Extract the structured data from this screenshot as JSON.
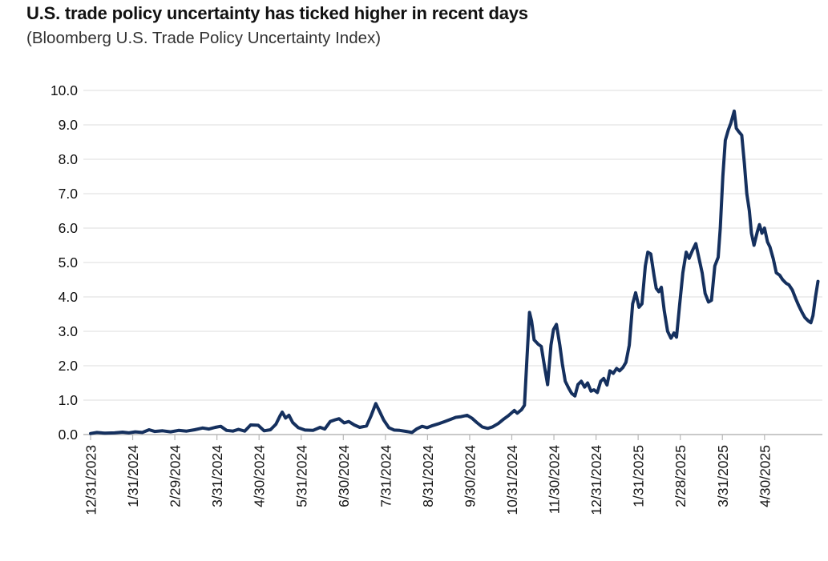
{
  "title": "U.S. trade policy uncertainty has ticked higher in recent days",
  "subtitle": "(Bloomberg U.S. Trade Policy Uncertainty Index)",
  "chart_data": {
    "type": "line",
    "title": "U.S. trade policy uncertainty has ticked higher in recent days",
    "subtitle": "(Bloomberg U.S. Trade Policy Uncertainty Index)",
    "series_name": "Bloomberg U.S. Trade Policy Uncertainty Index",
    "ylim": [
      0.0,
      10.0
    ],
    "grid": "horizontal",
    "legend": "none",
    "line_color": "#15305e",
    "grid_color": "#dcdcdc",
    "axis_color": "#b7b7b7",
    "y_tick_labels": [
      "0.0",
      "1.0",
      "2.0",
      "3.0",
      "4.0",
      "5.0",
      "6.0",
      "7.0",
      "8.0",
      "9.0",
      "10.0"
    ],
    "x_tick_labels": [
      "12/31/2023",
      "1/31/2024",
      "2/29/2024",
      "3/31/2024",
      "4/30/2024",
      "5/31/2024",
      "6/30/2024",
      "7/31/2024",
      "8/31/2024",
      "9/30/2024",
      "10/31/2024",
      "11/30/2024",
      "12/31/2024",
      "1/31/2025",
      "2/28/2025",
      "3/31/2025",
      "4/30/2025"
    ],
    "x_unit": "months_since_first_tick",
    "points": [
      [
        0,
        0.03
      ],
      [
        0.15,
        0.06
      ],
      [
        0.34,
        0.04
      ],
      [
        0.57,
        0.05
      ],
      [
        0.76,
        0.07
      ],
      [
        0.91,
        0.05
      ],
      [
        1.06,
        0.08
      ],
      [
        1.23,
        0.06
      ],
      [
        1.39,
        0.14
      ],
      [
        1.52,
        0.09
      ],
      [
        1.71,
        0.11
      ],
      [
        1.9,
        0.08
      ],
      [
        2.09,
        0.12
      ],
      [
        2.28,
        0.1
      ],
      [
        2.47,
        0.14
      ],
      [
        2.66,
        0.19
      ],
      [
        2.81,
        0.16
      ],
      [
        2.96,
        0.21
      ],
      [
        3.09,
        0.24
      ],
      [
        3.23,
        0.12
      ],
      [
        3.38,
        0.1
      ],
      [
        3.51,
        0.15
      ],
      [
        3.66,
        0.1
      ],
      [
        3.8,
        0.28
      ],
      [
        3.98,
        0.27
      ],
      [
        4.12,
        0.11
      ],
      [
        4.27,
        0.14
      ],
      [
        4.4,
        0.3
      ],
      [
        4.5,
        0.55
      ],
      [
        4.55,
        0.65
      ],
      [
        4.63,
        0.48
      ],
      [
        4.71,
        0.56
      ],
      [
        4.8,
        0.35
      ],
      [
        4.93,
        0.2
      ],
      [
        5.09,
        0.13
      ],
      [
        5.28,
        0.12
      ],
      [
        5.45,
        0.21
      ],
      [
        5.56,
        0.16
      ],
      [
        5.69,
        0.38
      ],
      [
        5.81,
        0.43
      ],
      [
        5.9,
        0.46
      ],
      [
        6.02,
        0.34
      ],
      [
        6.13,
        0.38
      ],
      [
        6.26,
        0.28
      ],
      [
        6.39,
        0.21
      ],
      [
        6.55,
        0.25
      ],
      [
        6.66,
        0.55
      ],
      [
        6.77,
        0.9
      ],
      [
        6.87,
        0.65
      ],
      [
        6.96,
        0.42
      ],
      [
        7.08,
        0.2
      ],
      [
        7.21,
        0.13
      ],
      [
        7.34,
        0.12
      ],
      [
        7.5,
        0.09
      ],
      [
        7.63,
        0.06
      ],
      [
        7.74,
        0.16
      ],
      [
        7.87,
        0.24
      ],
      [
        7.99,
        0.2
      ],
      [
        8.12,
        0.26
      ],
      [
        8.25,
        0.31
      ],
      [
        8.41,
        0.38
      ],
      [
        8.54,
        0.44
      ],
      [
        8.67,
        0.5
      ],
      [
        8.8,
        0.52
      ],
      [
        8.94,
        0.56
      ],
      [
        9.05,
        0.48
      ],
      [
        9.17,
        0.35
      ],
      [
        9.3,
        0.22
      ],
      [
        9.43,
        0.18
      ],
      [
        9.54,
        0.22
      ],
      [
        9.68,
        0.32
      ],
      [
        9.81,
        0.45
      ],
      [
        9.92,
        0.55
      ],
      [
        10.06,
        0.7
      ],
      [
        10.13,
        0.62
      ],
      [
        10.23,
        0.72
      ],
      [
        10.3,
        0.85
      ],
      [
        10.36,
        2.2
      ],
      [
        10.42,
        3.55
      ],
      [
        10.47,
        3.3
      ],
      [
        10.53,
        2.75
      ],
      [
        10.63,
        2.62
      ],
      [
        10.7,
        2.56
      ],
      [
        10.78,
        1.95
      ],
      [
        10.85,
        1.45
      ],
      [
        10.93,
        2.6
      ],
      [
        10.99,
        3.05
      ],
      [
        11.06,
        3.2
      ],
      [
        11.14,
        2.6
      ],
      [
        11.2,
        2.05
      ],
      [
        11.27,
        1.55
      ],
      [
        11.35,
        1.35
      ],
      [
        11.42,
        1.2
      ],
      [
        11.5,
        1.12
      ],
      [
        11.57,
        1.45
      ],
      [
        11.65,
        1.55
      ],
      [
        11.73,
        1.38
      ],
      [
        11.8,
        1.5
      ],
      [
        11.88,
        1.26
      ],
      [
        11.95,
        1.3
      ],
      [
        12.03,
        1.22
      ],
      [
        12.11,
        1.55
      ],
      [
        12.18,
        1.63
      ],
      [
        12.26,
        1.44
      ],
      [
        12.33,
        1.85
      ],
      [
        12.41,
        1.78
      ],
      [
        12.49,
        1.92
      ],
      [
        12.56,
        1.85
      ],
      [
        12.64,
        1.95
      ],
      [
        12.71,
        2.1
      ],
      [
        12.79,
        2.6
      ],
      [
        12.87,
        3.8
      ],
      [
        12.94,
        4.12
      ],
      [
        13.02,
        3.7
      ],
      [
        13.09,
        3.8
      ],
      [
        13.17,
        4.9
      ],
      [
        13.23,
        5.3
      ],
      [
        13.3,
        5.25
      ],
      [
        13.38,
        4.6
      ],
      [
        13.43,
        4.25
      ],
      [
        13.49,
        4.15
      ],
      [
        13.55,
        4.28
      ],
      [
        13.62,
        3.6
      ],
      [
        13.7,
        3.0
      ],
      [
        13.78,
        2.8
      ],
      [
        13.85,
        2.95
      ],
      [
        13.91,
        2.83
      ],
      [
        13.98,
        3.7
      ],
      [
        14.06,
        4.7
      ],
      [
        14.14,
        5.3
      ],
      [
        14.21,
        5.12
      ],
      [
        14.29,
        5.35
      ],
      [
        14.37,
        5.55
      ],
      [
        14.44,
        5.15
      ],
      [
        14.52,
        4.7
      ],
      [
        14.59,
        4.1
      ],
      [
        14.67,
        3.85
      ],
      [
        14.74,
        3.9
      ],
      [
        14.82,
        4.9
      ],
      [
        14.9,
        5.15
      ],
      [
        14.95,
        6.0
      ],
      [
        15.01,
        7.5
      ],
      [
        15.07,
        8.55
      ],
      [
        15.14,
        8.85
      ],
      [
        15.2,
        9.05
      ],
      [
        15.28,
        9.4
      ],
      [
        15.33,
        8.9
      ],
      [
        15.39,
        8.8
      ],
      [
        15.46,
        8.7
      ],
      [
        15.52,
        7.9
      ],
      [
        15.58,
        7.0
      ],
      [
        15.64,
        6.5
      ],
      [
        15.69,
        5.85
      ],
      [
        15.75,
        5.5
      ],
      [
        15.83,
        5.9
      ],
      [
        15.88,
        6.1
      ],
      [
        15.94,
        5.85
      ],
      [
        16.0,
        6.0
      ],
      [
        16.07,
        5.6
      ],
      [
        16.13,
        5.45
      ],
      [
        16.21,
        5.1
      ],
      [
        16.28,
        4.7
      ],
      [
        16.36,
        4.63
      ],
      [
        16.43,
        4.5
      ],
      [
        16.51,
        4.4
      ],
      [
        16.58,
        4.35
      ],
      [
        16.66,
        4.2
      ],
      [
        16.74,
        3.95
      ],
      [
        16.81,
        3.75
      ],
      [
        16.89,
        3.55
      ],
      [
        16.96,
        3.4
      ],
      [
        17.04,
        3.3
      ],
      [
        17.1,
        3.25
      ],
      [
        17.15,
        3.45
      ],
      [
        17.21,
        4.0
      ],
      [
        17.27,
        4.45
      ]
    ]
  }
}
